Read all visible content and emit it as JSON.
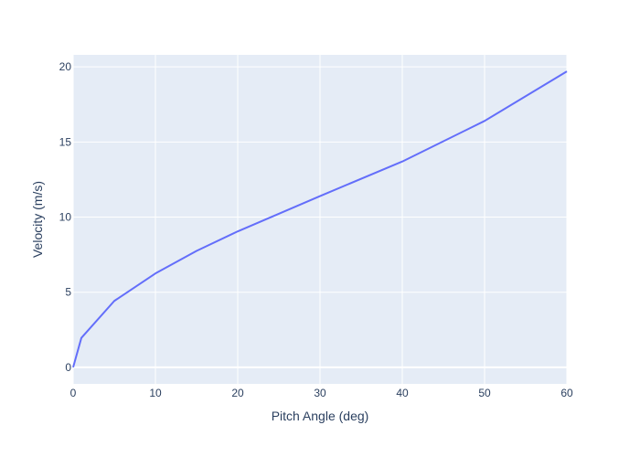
{
  "chart_data": {
    "type": "line",
    "xlabel": "Pitch Angle (deg)",
    "ylabel": "Velocity (m/s)",
    "xlim": [
      0,
      60
    ],
    "ylim": [
      -1.1,
      20.8
    ],
    "xticks": [
      0,
      10,
      20,
      30,
      40,
      50,
      60
    ],
    "yticks": [
      0,
      5,
      10,
      15,
      20
    ],
    "grid": true,
    "colors": {
      "plot_bg": "#e5ecf6",
      "grid": "#ffffff",
      "line": "#636efa",
      "text": "#2a3f5f"
    },
    "series": [
      {
        "x": [
          0,
          1,
          5,
          10,
          15,
          20,
          30,
          40,
          50,
          60
        ],
        "y": [
          0,
          1.96,
          4.42,
          6.25,
          7.75,
          9.05,
          11.4,
          13.7,
          16.4,
          19.7
        ]
      }
    ]
  }
}
